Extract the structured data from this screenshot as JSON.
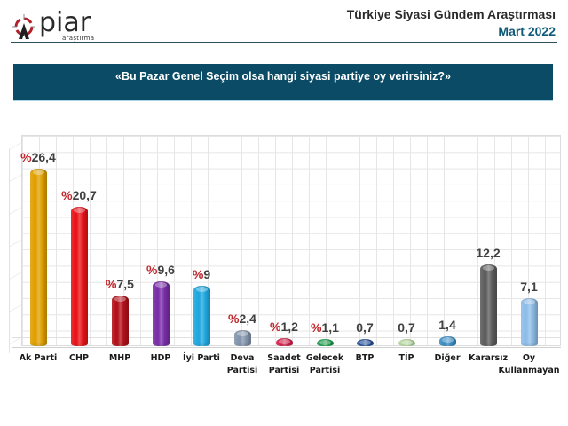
{
  "header": {
    "logo_name": "piar",
    "logo_sub": "araştırma",
    "title": "Türkiye Siyasi Gündem Araştırması",
    "date": "Mart 2022"
  },
  "question": "«Bu Pazar Genel Seçim olsa hangi siyasi partiye oy verirsiniz?»",
  "chart_data": {
    "type": "bar",
    "title": "«Bu Pazar Genel Seçim olsa hangi siyasi partiye oy verirsiniz?»",
    "xlabel": "",
    "ylabel": "",
    "ylim": [
      0,
      28
    ],
    "grid": true,
    "legend": "none",
    "categories": [
      "Ak Parti",
      "CHP",
      "MHP",
      "HDP",
      "İyi Parti",
      "Deva Partisi",
      "Saadet Partisi",
      "Gelecek Partisi",
      "BTP",
      "TİP",
      "Diğer",
      "Kararsız",
      "Oy Kullanmayan"
    ],
    "values": [
      26.4,
      20.7,
      7.5,
      9.6,
      9.0,
      2.4,
      1.2,
      1.1,
      0.7,
      0.7,
      1.4,
      12.2,
      7.1
    ],
    "labels": [
      {
        "prefix": "%",
        "text": "26,4"
      },
      {
        "prefix": "%",
        "text": "20,7"
      },
      {
        "prefix": "%",
        "text": "7,5"
      },
      {
        "prefix": "%",
        "text": "9,6"
      },
      {
        "prefix": "%",
        "text": "9"
      },
      {
        "prefix": "%",
        "text": "2,4"
      },
      {
        "prefix": "%",
        "text": "1,2"
      },
      {
        "prefix": "%",
        "text": "1,1"
      },
      {
        "prefix": "",
        "text": "0,7"
      },
      {
        "prefix": "",
        "text": "0,7"
      },
      {
        "prefix": "",
        "text": "1,4"
      },
      {
        "prefix": "",
        "text": "12,2"
      },
      {
        "prefix": "",
        "text": "7,1"
      }
    ],
    "colors": [
      "#e0a000",
      "#e8141a",
      "#b4111a",
      "#7a2fa8",
      "#1fa8e0",
      "#8496ad",
      "#d81e4a",
      "#1aa04a",
      "#254f9e",
      "#b7dca0",
      "#3b8fc8",
      "#5d5d5d",
      "#8ebde8"
    ],
    "category_lines": [
      [
        "Ak Parti"
      ],
      [
        "CHP"
      ],
      [
        "MHP"
      ],
      [
        "HDP"
      ],
      [
        "İyi Parti"
      ],
      [
        "Deva",
        "Partisi"
      ],
      [
        "Saadet",
        "Partisi"
      ],
      [
        "Gelecek",
        "Partisi"
      ],
      [
        "BTP"
      ],
      [
        "TİP"
      ],
      [
        "Diğer"
      ],
      [
        "Kararsız"
      ],
      [
        "Oy",
        "Kullanmayan"
      ]
    ]
  }
}
